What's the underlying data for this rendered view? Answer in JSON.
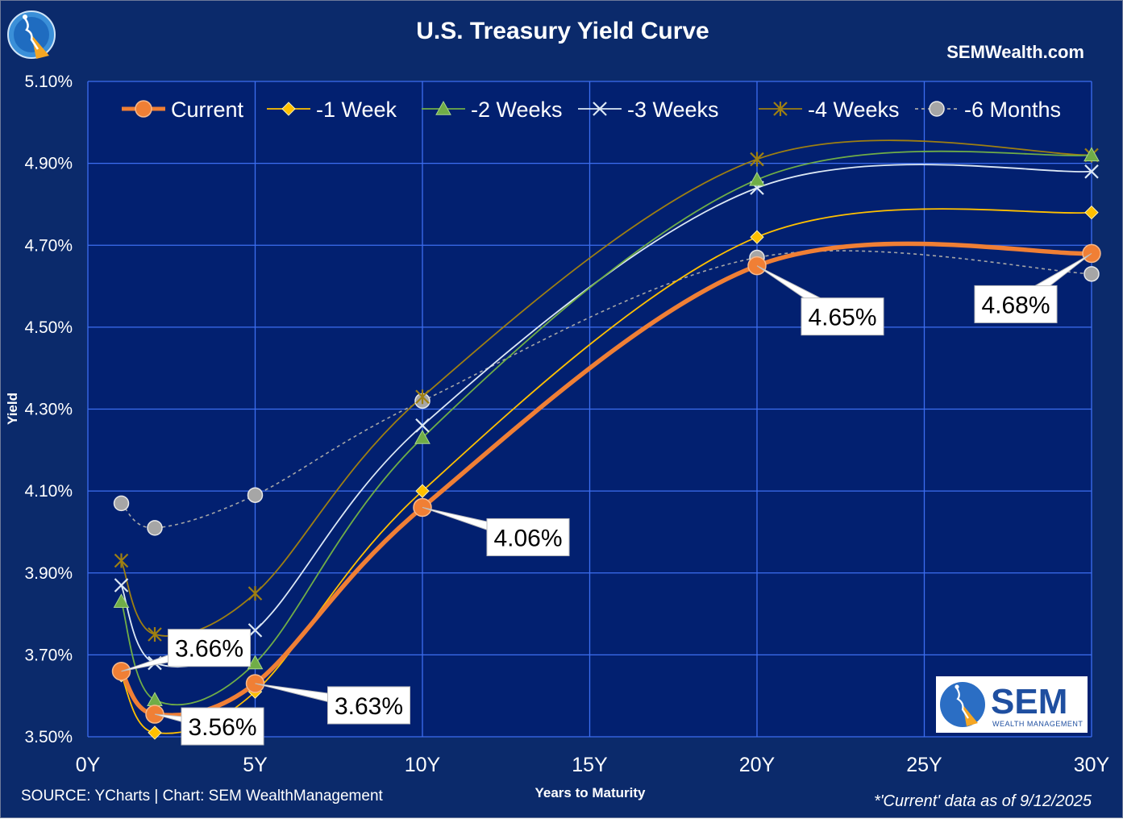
{
  "chart_data": {
    "type": "line",
    "title": "U.S. Treasury Yield Curve",
    "website": "SEMWealth.com",
    "xlabel": "Years to Maturity",
    "ylabel": "Yield",
    "xlim": [
      0,
      30
    ],
    "ylim": [
      3.5,
      5.1
    ],
    "x_ticks": [
      0,
      5,
      10,
      15,
      20,
      25,
      30
    ],
    "x_tick_labels": [
      "0Y",
      "5Y",
      "10Y",
      "15Y",
      "20Y",
      "25Y",
      "30Y"
    ],
    "y_ticks": [
      3.5,
      3.7,
      3.9,
      4.1,
      4.3,
      4.5,
      4.7,
      4.9,
      5.1
    ],
    "y_tick_labels": [
      "3.50%",
      "3.70%",
      "3.90%",
      "4.10%",
      "4.30%",
      "4.50%",
      "4.70%",
      "4.90%",
      "5.10%"
    ],
    "grid": true,
    "legend_position": "top",
    "x": [
      1,
      2,
      5,
      10,
      20,
      30
    ],
    "series": [
      {
        "name": "Current",
        "color": "#f07f35",
        "marker": "circle",
        "values": [
          3.66,
          3.555,
          3.63,
          4.06,
          4.65,
          4.68
        ]
      },
      {
        "name": "-1 Week",
        "color": "#ffc000",
        "marker": "diamond",
        "values": [
          3.65,
          3.51,
          3.61,
          4.1,
          4.72,
          4.78
        ]
      },
      {
        "name": "-2 Weeks",
        "color": "#70ad47",
        "marker": "triangle",
        "values": [
          3.83,
          3.59,
          3.68,
          4.23,
          4.86,
          4.92
        ]
      },
      {
        "name": "-3 Weeks",
        "color": "#dce8f5",
        "marker": "x",
        "values": [
          3.87,
          3.68,
          3.76,
          4.26,
          4.84,
          4.88
        ]
      },
      {
        "name": "-4 Weeks",
        "color": "#9e7f12",
        "marker": "star",
        "values": [
          3.93,
          3.75,
          3.85,
          4.33,
          4.91,
          4.92
        ]
      },
      {
        "name": "-6 Months",
        "color": "#a6a6a6",
        "marker": "circle-gray",
        "values": [
          4.07,
          4.01,
          4.09,
          4.32,
          4.67,
          4.63
        ]
      }
    ],
    "annotations": [
      {
        "label": "3.66%",
        "x": 1,
        "y": 3.66
      },
      {
        "label": "3.56%",
        "x": 2,
        "y": 3.555
      },
      {
        "label": "3.63%",
        "x": 5,
        "y": 3.63
      },
      {
        "label": "4.06%",
        "x": 10,
        "y": 4.06
      },
      {
        "label": "4.65%",
        "x": 20,
        "y": 4.65
      },
      {
        "label": "4.68%",
        "x": 30,
        "y": 4.68
      }
    ],
    "source": "SOURCE: YCharts | Chart: SEM WealthManagement",
    "note": "*'Current' data as of 9/12/2025"
  },
  "logo": {
    "brand": "SEM",
    "tagline": "WEALTH MANAGEMENT"
  }
}
